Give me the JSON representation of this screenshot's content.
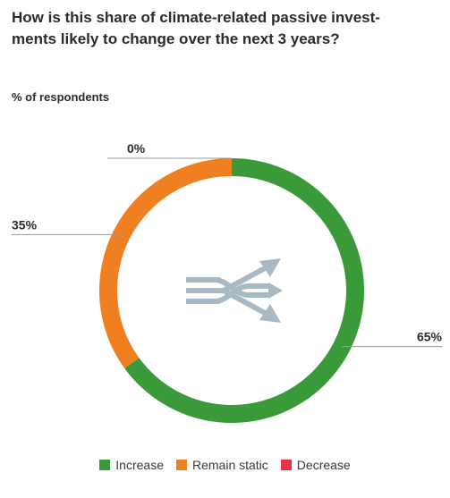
{
  "title": "How is this share of climate-related passive investments likely to change over the next 3 years?",
  "title_lines": [
    "How is this share of climate-related passive invest-",
    "ments likely to change over the next 3 years?"
  ],
  "subtitle": "% of respondents",
  "center_icon": "split-arrows-icon",
  "colors": {
    "increase": "#3a9a3a",
    "remain_static": "#f07f22",
    "decrease": "#e8334a",
    "icon": "#a9b9c4",
    "leader": "#9a9a9a"
  },
  "chart_data": {
    "type": "pie",
    "donut": true,
    "categories": [
      "Increase",
      "Remain static",
      "Decrease"
    ],
    "values": [
      65,
      35,
      0
    ],
    "data_labels": [
      "65%",
      "35%",
      "0%"
    ],
    "legend_position": "bottom",
    "title": "How is this share of climate-related passive investments likely to change over the next 3 years?",
    "subtitle": "% of respondents"
  },
  "legend": [
    {
      "label": "Increase",
      "color": "#3a9a3a"
    },
    {
      "label": "Remain static",
      "color": "#f07f22"
    },
    {
      "label": "Decrease",
      "color": "#e8334a"
    }
  ]
}
